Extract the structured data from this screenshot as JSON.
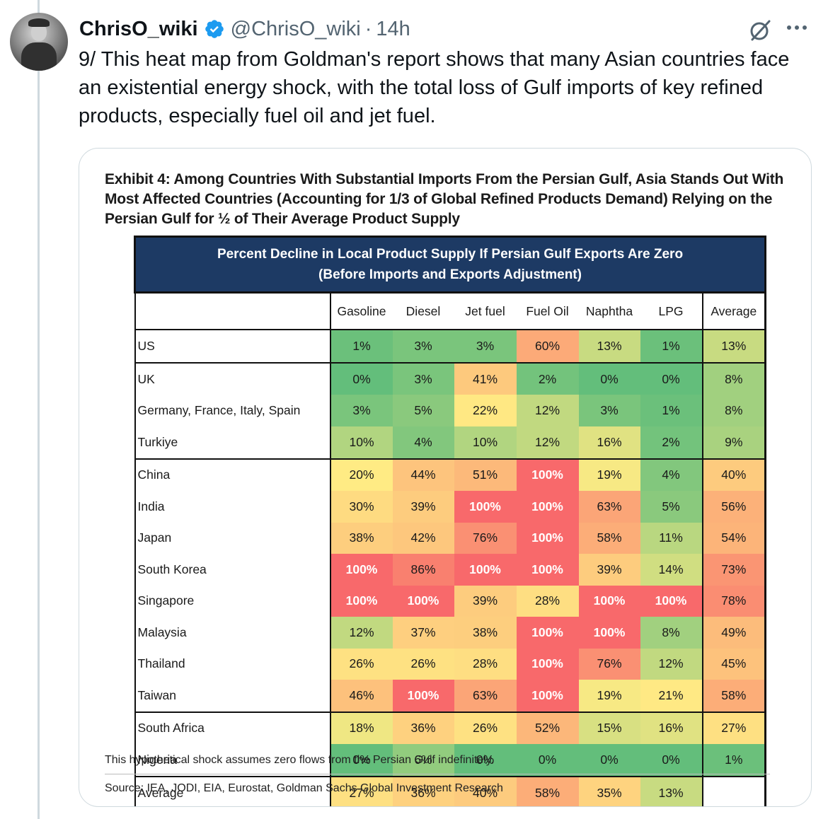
{
  "tweet": {
    "display_name": "ChrisO_wiki",
    "handle": "@ChrisO_wiki",
    "separator": "·",
    "time": "14h",
    "text": "9/ This heat map from Goldman's report shows that many Asian countries face an existential energy shock, with the total loss of Gulf imports of key refined products, especially fuel oil and jet fuel."
  },
  "icons": {
    "verified": "verified-badge-icon",
    "grok": "grok-icon",
    "more": "more-icon"
  },
  "colors": {
    "verified": "#1d9bf0",
    "banner": "#1d3a64",
    "heat_low": "#63be7b",
    "heat_mid": "#ffeb84",
    "heat_high": "#f8696b"
  },
  "exhibit": {
    "title": "Exhibit 4: Among Countries With Substantial Imports From the Persian Gulf, Asia Stands Out With Most Affected Countries (Accounting for 1/3 of Global Refined Products Demand) Relying on the Persian Gulf for ½ of Their Average Product Supply",
    "banner_line1": "Percent Decline in Local Product Supply If Persian Gulf Exports Are Zero",
    "banner_line2": "(Before Imports and Exports Adjustment)",
    "note": "This hypothetical shock assumes zero flows from the Persian Gulf indefinitely.",
    "source": "Source: IEA, JODI, EIA, Eurostat, Goldman Sachs Global Investment Research"
  },
  "chart_data": {
    "type": "heatmap",
    "title": "Percent Decline in Local Product Supply If Persian Gulf Exports Are Zero",
    "subtitle": "(Before Imports and Exports Adjustment)",
    "columns": [
      "Gasoline",
      "Diesel",
      "Jet fuel",
      "Fuel Oil",
      "Naphtha",
      "LPG",
      "Average"
    ],
    "rows": [
      {
        "label": "US",
        "values": [
          1,
          3,
          3,
          60,
          13,
          1,
          13
        ]
      },
      {
        "label": "UK",
        "values": [
          0,
          3,
          41,
          2,
          0,
          0,
          8
        ]
      },
      {
        "label": "Germany, France, Italy, Spain",
        "values": [
          3,
          5,
          22,
          12,
          3,
          1,
          8
        ]
      },
      {
        "label": "Turkiye",
        "values": [
          10,
          4,
          10,
          12,
          16,
          2,
          9
        ]
      },
      {
        "label": "China",
        "values": [
          20,
          44,
          51,
          100,
          19,
          4,
          40
        ]
      },
      {
        "label": "India",
        "values": [
          30,
          39,
          100,
          100,
          63,
          5,
          56
        ]
      },
      {
        "label": "Japan",
        "values": [
          38,
          42,
          76,
          100,
          58,
          11,
          54
        ]
      },
      {
        "label": "South Korea",
        "values": [
          100,
          86,
          100,
          100,
          39,
          14,
          73
        ]
      },
      {
        "label": "Singapore",
        "values": [
          100,
          100,
          39,
          28,
          100,
          100,
          78
        ]
      },
      {
        "label": "Malaysia",
        "values": [
          12,
          37,
          38,
          100,
          100,
          8,
          49
        ]
      },
      {
        "label": "Thailand",
        "values": [
          26,
          26,
          28,
          100,
          76,
          12,
          45
        ]
      },
      {
        "label": "Taiwan",
        "values": [
          46,
          100,
          63,
          100,
          19,
          21,
          58
        ]
      },
      {
        "label": "South Africa",
        "values": [
          18,
          36,
          26,
          52,
          15,
          16,
          27
        ]
      },
      {
        "label": "Nigeria",
        "values": [
          0,
          6,
          0,
          0,
          0,
          0,
          1
        ]
      },
      {
        "label": "Average",
        "values": [
          27,
          36,
          40,
          58,
          35,
          13,
          null
        ]
      }
    ],
    "row_groups_end": [
      0,
      3,
      11,
      13
    ],
    "unit": "%"
  }
}
